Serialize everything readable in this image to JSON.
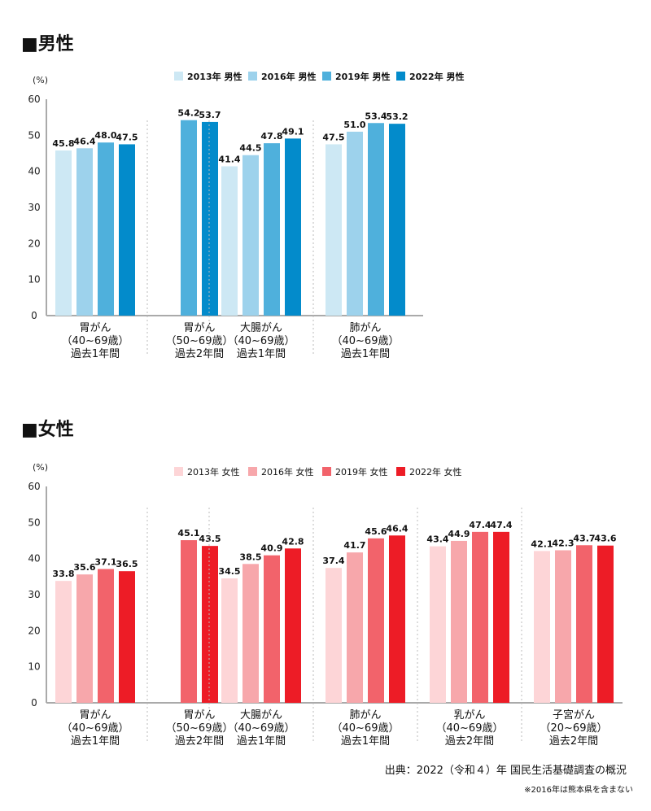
{
  "chart_data": [
    {
      "type": "bar",
      "title": "■男性",
      "ylabel": "(%)",
      "ylim": [
        0,
        60
      ],
      "yticks": [
        0,
        10,
        20,
        30,
        40,
        50,
        60
      ],
      "grid": false,
      "legend": "top-center",
      "categories": [
        [
          "胃がん",
          "（40~69歳）",
          "過去1年間"
        ],
        [
          "胃がん",
          "（50~69歳）",
          "過去2年間"
        ],
        [
          "大腸がん",
          "（40~69歳）",
          "過去1年間"
        ],
        [
          "肺がん",
          "（40~69歳）",
          "過去1年間"
        ]
      ],
      "series": [
        {
          "name": "2013年 男性",
          "color": "#cde8f4",
          "values": [
            45.8,
            null,
            41.4,
            47.5
          ]
        },
        {
          "name": "2016年 男性",
          "color": "#9dd2ec",
          "values": [
            46.4,
            null,
            44.5,
            51.0
          ]
        },
        {
          "name": "2019年 男性",
          "color": "#4fb0dc",
          "values": [
            48.0,
            54.2,
            47.8,
            53.4
          ]
        },
        {
          "name": "2022年 男性",
          "color": "#038bcb",
          "values": [
            47.5,
            53.7,
            49.1,
            53.2
          ]
        }
      ]
    },
    {
      "type": "bar",
      "title": "■女性",
      "ylabel": "(%)",
      "ylim": [
        0,
        60
      ],
      "yticks": [
        0,
        10,
        20,
        30,
        40,
        50,
        60
      ],
      "grid": false,
      "legend": "top-center",
      "categories": [
        [
          "胃がん",
          "（40~69歳）",
          "過去1年間"
        ],
        [
          "胃がん",
          "（50~69歳）",
          "過去2年間"
        ],
        [
          "大腸がん",
          "（40~69歳）",
          "過去1年間"
        ],
        [
          "肺がん",
          "（40~69歳）",
          "過去1年間"
        ],
        [
          "乳がん",
          "（40~69歳）",
          "過去2年間"
        ],
        [
          "子宮がん",
          "（20~69歳）",
          "過去2年間"
        ]
      ],
      "series": [
        {
          "name": "2013年 女性",
          "color": "#fdd5d7",
          "values": [
            33.8,
            null,
            34.5,
            37.4,
            43.4,
            42.1
          ]
        },
        {
          "name": "2016年 女性",
          "color": "#f7a7ab",
          "values": [
            35.6,
            null,
            38.5,
            41.7,
            44.9,
            42.3
          ]
        },
        {
          "name": "2019年 女性",
          "color": "#f2636b",
          "values": [
            37.1,
            45.1,
            40.9,
            45.6,
            47.4,
            43.7
          ]
        },
        {
          "name": "2022年 女性",
          "color": "#ed1c26",
          "values": [
            36.5,
            43.5,
            42.8,
            46.4,
            47.4,
            43.6
          ]
        }
      ]
    }
  ],
  "source": "出典：2022（令和４）年 国民生活基礎調査の概況",
  "note": "※2016年は熊本県を含まない"
}
